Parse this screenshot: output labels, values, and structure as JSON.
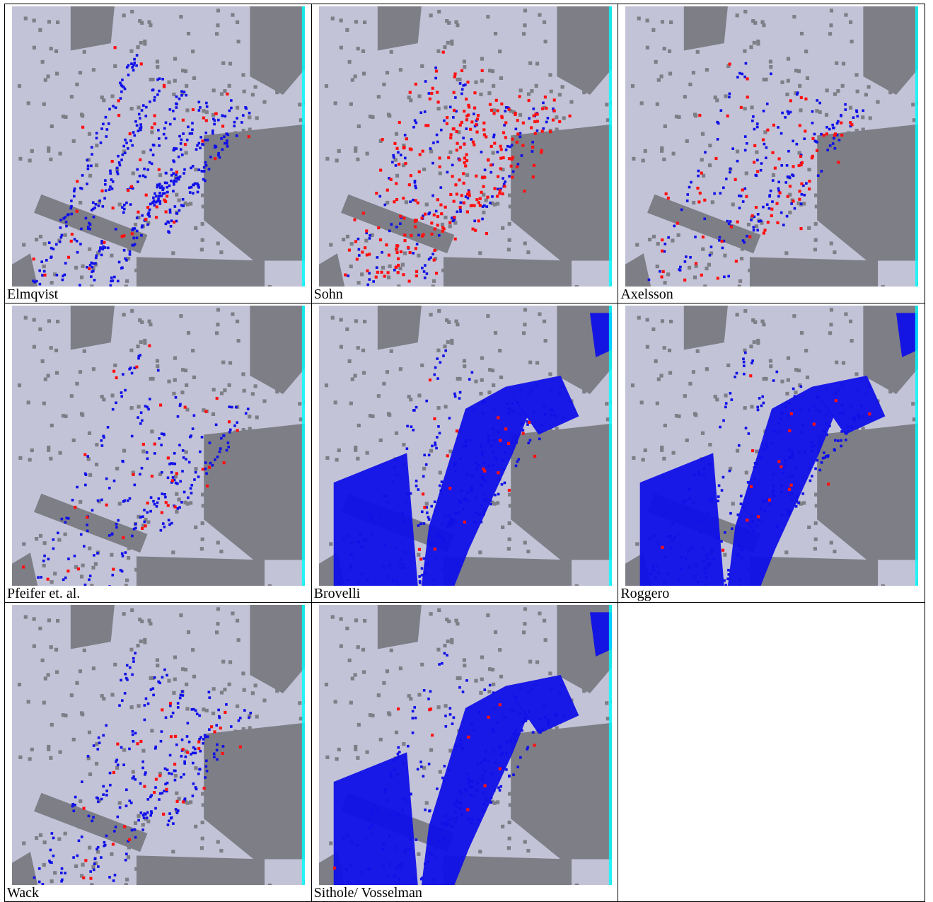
{
  "figure": {
    "panels": [
      {
        "caption": "Elmqvist",
        "variant": "elmqvist"
      },
      {
        "caption": "Sohn",
        "variant": "sohn"
      },
      {
        "caption": "Axelsson",
        "variant": "axelsson"
      },
      {
        "caption": "Pfeifer et. al.",
        "variant": "pfeifer"
      },
      {
        "caption": "Brovelli",
        "variant": "brovelli"
      },
      {
        "caption": "Roggero",
        "variant": "roggero"
      },
      {
        "caption": "Wack",
        "variant": "wack"
      },
      {
        "caption": "Sithole/ Vosselman",
        "variant": "sithole"
      }
    ]
  },
  "colors": {
    "ground": "#c3c3d8",
    "object": "#7e7e86",
    "type_i_error": "#1010e8",
    "type_ii_error": "#ff1010",
    "edge": "#00ffff"
  }
}
